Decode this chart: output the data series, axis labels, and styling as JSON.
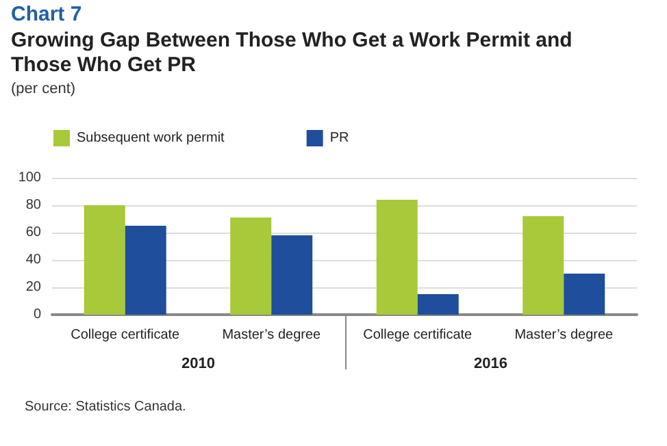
{
  "chart_data": {
    "type": "bar",
    "title": "Growing Gap Between Those Who Get a Work Permit and Those Who Get PR",
    "subtitle": "(per cent)",
    "annotations": [
      "Chart 7",
      "2010",
      "2016",
      "Source: Statistics Canada."
    ],
    "categories": [
      "College certificate",
      "Master’s degree",
      "College certificate",
      "Master’s degree"
    ],
    "series": [
      {
        "name": "Subsequent work permit",
        "color": "#a8c93a",
        "values": [
          80,
          71,
          84,
          72
        ]
      },
      {
        "name": "PR",
        "color": "#1f4e9c",
        "values": [
          65,
          58,
          15,
          30
        ]
      }
    ],
    "ylim": [
      0,
      100
    ],
    "yticks": [
      0,
      20,
      40,
      60,
      80,
      100
    ],
    "grid": "y",
    "legend": "top left"
  }
}
